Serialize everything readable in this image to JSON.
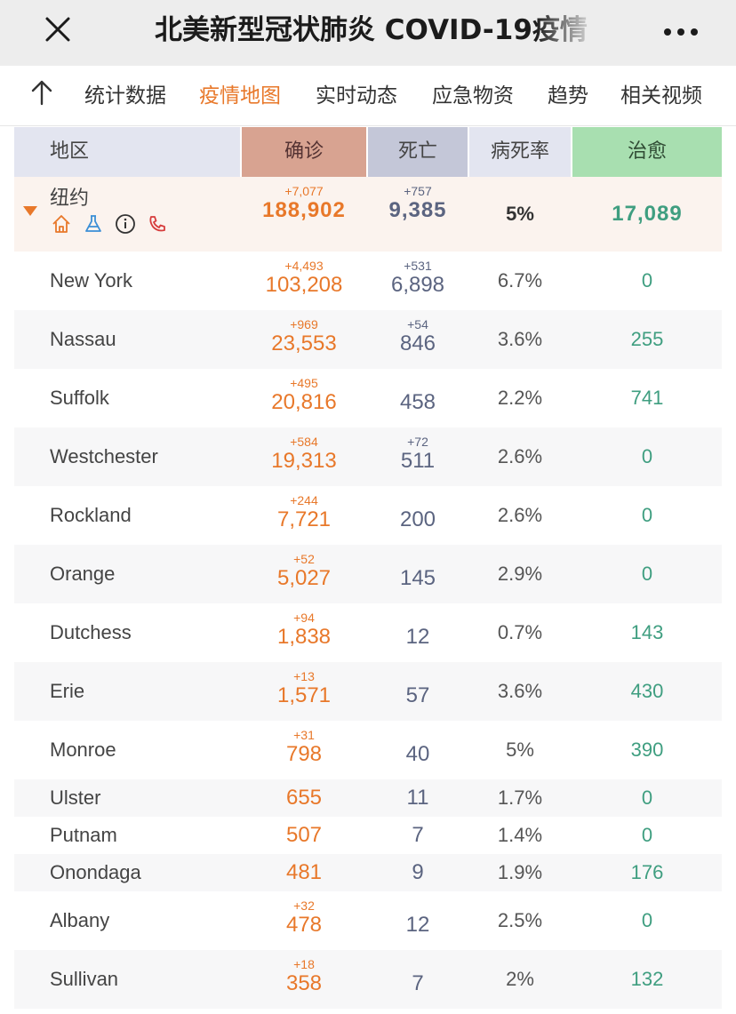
{
  "header": {
    "title": "北美新型冠状肺炎 COVID-19疫情",
    "close_icon": "close-icon",
    "more_icon": "more-icon"
  },
  "tabs": {
    "up_icon": "arrow-up-icon",
    "items": [
      {
        "label": "统计数据",
        "active": false
      },
      {
        "label": "疫情地图",
        "active": true
      },
      {
        "label": "实时动态",
        "active": false
      },
      {
        "label": "应急物资",
        "active": false
      },
      {
        "label": "趋势",
        "active": false
      },
      {
        "label": "相关视频",
        "active": false
      }
    ]
  },
  "table": {
    "columns": {
      "region": "地区",
      "confirmed": "确诊",
      "deaths": "死亡",
      "rate": "病死率",
      "recovered": "治愈"
    },
    "state": {
      "name": "纽约",
      "confirmed_inc": "+7,077",
      "confirmed": "188,902",
      "deaths_inc": "+757",
      "deaths": "9,385",
      "rate": "5%",
      "recovered": "17,089",
      "icons": [
        "home-icon",
        "flask-icon",
        "info-icon",
        "phone-icon"
      ]
    },
    "rows": [
      {
        "name": "New York",
        "confirmed_inc": "+4,493",
        "confirmed": "103,208",
        "deaths_inc": "+531",
        "deaths": "6,898",
        "rate": "6.7%",
        "recovered": "0"
      },
      {
        "name": "Nassau",
        "confirmed_inc": "+969",
        "confirmed": "23,553",
        "deaths_inc": "+54",
        "deaths": "846",
        "rate": "3.6%",
        "recovered": "255"
      },
      {
        "name": "Suffolk",
        "confirmed_inc": "+495",
        "confirmed": "20,816",
        "deaths_inc": "",
        "deaths": "458",
        "rate": "2.2%",
        "recovered": "741"
      },
      {
        "name": "Westchester",
        "confirmed_inc": "+584",
        "confirmed": "19,313",
        "deaths_inc": "+72",
        "deaths": "511",
        "rate": "2.6%",
        "recovered": "0"
      },
      {
        "name": "Rockland",
        "confirmed_inc": "+244",
        "confirmed": "7,721",
        "deaths_inc": "",
        "deaths": "200",
        "rate": "2.6%",
        "recovered": "0"
      },
      {
        "name": "Orange",
        "confirmed_inc": "+52",
        "confirmed": "5,027",
        "deaths_inc": "",
        "deaths": "145",
        "rate": "2.9%",
        "recovered": "0"
      },
      {
        "name": "Dutchess",
        "confirmed_inc": "+94",
        "confirmed": "1,838",
        "deaths_inc": "",
        "deaths": "12",
        "rate": "0.7%",
        "recovered": "143"
      },
      {
        "name": "Erie",
        "confirmed_inc": "+13",
        "confirmed": "1,571",
        "deaths_inc": "",
        "deaths": "57",
        "rate": "3.6%",
        "recovered": "430"
      },
      {
        "name": "Monroe",
        "confirmed_inc": "+31",
        "confirmed": "798",
        "deaths_inc": "",
        "deaths": "40",
        "rate": "5%",
        "recovered": "390"
      },
      {
        "name": "Ulster",
        "confirmed_inc": "",
        "confirmed": "655",
        "deaths_inc": "",
        "deaths": "11",
        "rate": "1.7%",
        "recovered": "0"
      },
      {
        "name": "Putnam",
        "confirmed_inc": "",
        "confirmed": "507",
        "deaths_inc": "",
        "deaths": "7",
        "rate": "1.4%",
        "recovered": "0"
      },
      {
        "name": "Onondaga",
        "confirmed_inc": "",
        "confirmed": "481",
        "deaths_inc": "",
        "deaths": "9",
        "rate": "1.9%",
        "recovered": "176"
      },
      {
        "name": "Albany",
        "confirmed_inc": "+32",
        "confirmed": "478",
        "deaths_inc": "",
        "deaths": "12",
        "rate": "2.5%",
        "recovered": "0"
      },
      {
        "name": "Sullivan",
        "confirmed_inc": "+18",
        "confirmed": "358",
        "deaths_inc": "",
        "deaths": "7",
        "rate": "2%",
        "recovered": "132"
      }
    ]
  },
  "colors": {
    "accent": "#e8782a",
    "deaths": "#5b6480",
    "recovered": "#3f9e80",
    "header_confirmed": "#d8a391",
    "header_recovered": "#a8dfb0"
  }
}
